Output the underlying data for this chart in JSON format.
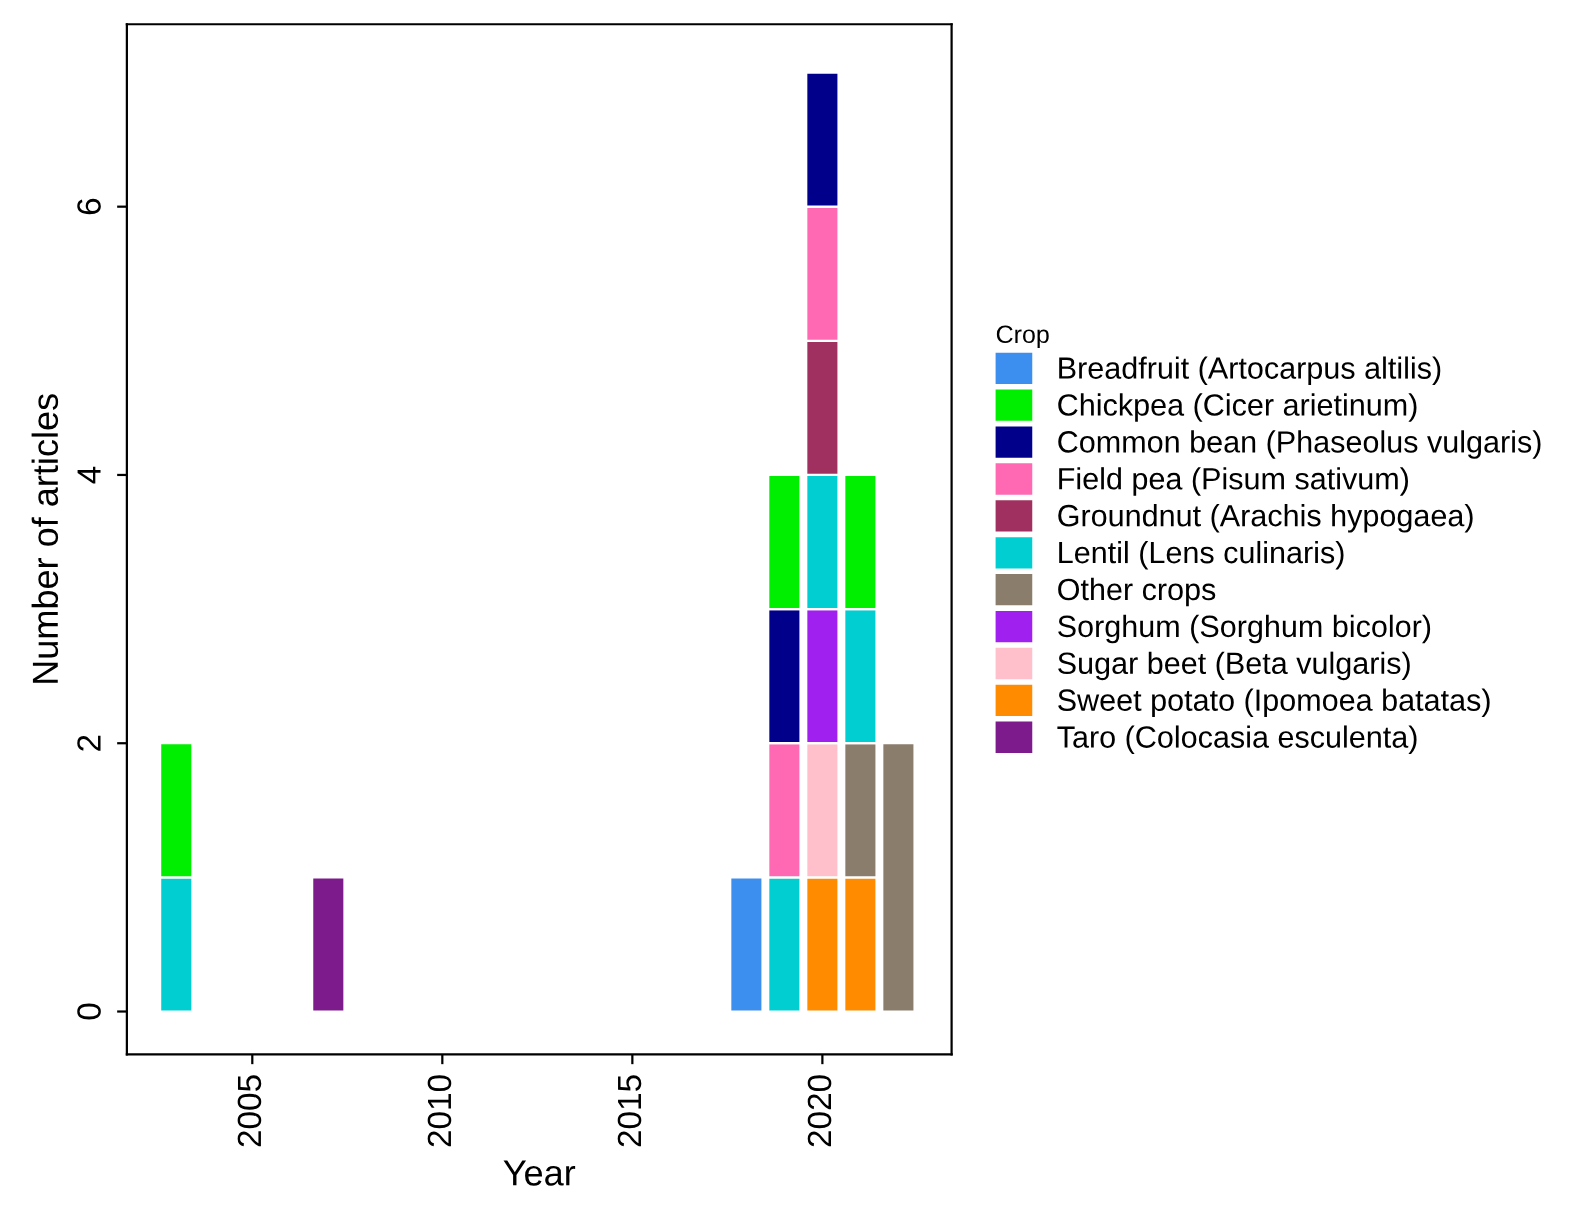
{
  "chart_data": {
    "type": "bar",
    "stacked": true,
    "xlabel": "Year",
    "ylabel": "Number of articles",
    "legend_title": "Crop",
    "legend": "right",
    "x": [
      2003,
      2007,
      2018,
      2019,
      2020,
      2021,
      2022
    ],
    "xlim": [
      2001.7,
      2023.4
    ],
    "xticks": [
      2005,
      2010,
      2015,
      2020
    ],
    "ylim": [
      -0.32,
      7.36
    ],
    "yticks": [
      0,
      2,
      4,
      6
    ],
    "grid": false,
    "series": [
      {
        "name": "Taro (Colocasia esculenta)",
        "color": "#7d1a8c",
        "values": [
          null,
          1,
          null,
          null,
          null,
          null,
          null
        ]
      },
      {
        "name": "Sweet potato (Ipomoea batatas)",
        "color": "#ff8c00",
        "values": [
          null,
          null,
          null,
          null,
          1,
          1,
          null
        ]
      },
      {
        "name": "Sugar beet (Beta vulgaris)",
        "color": "#ffc0cb",
        "values": [
          null,
          null,
          null,
          null,
          1,
          null,
          null
        ]
      },
      {
        "name": "Sorghum (Sorghum bicolor)",
        "color": "#a020f0",
        "values": [
          null,
          null,
          null,
          null,
          1,
          null,
          null
        ]
      },
      {
        "name": "Other crops",
        "color": "#8b7d6b",
        "values": [
          null,
          null,
          null,
          null,
          null,
          1,
          2
        ]
      },
      {
        "name": "Lentil (Lens culinaris)",
        "color": "#00ced1",
        "values": [
          1,
          null,
          null,
          1,
          1,
          1,
          null
        ]
      },
      {
        "name": "Groundnut (Arachis hypogaea)",
        "color": "#a0305f",
        "values": [
          null,
          null,
          null,
          null,
          1,
          null,
          null
        ]
      },
      {
        "name": "Field pea (Pisum sativum)",
        "color": "#ff69b4",
        "values": [
          null,
          null,
          null,
          1,
          1,
          null,
          null
        ]
      },
      {
        "name": "Common bean (Phaseolus vulgaris)",
        "color": "#00008b",
        "values": [
          null,
          null,
          null,
          1,
          1,
          null,
          null
        ]
      },
      {
        "name": "Chickpea (Cicer arietinum)",
        "color": "#00ee00",
        "values": [
          1,
          null,
          null,
          1,
          null,
          1,
          null
        ]
      },
      {
        "name": "Breadfruit (Artocarpus altilis)",
        "color": "#3d8fef",
        "values": [
          null,
          null,
          1,
          null,
          null,
          null,
          null
        ]
      }
    ]
  }
}
